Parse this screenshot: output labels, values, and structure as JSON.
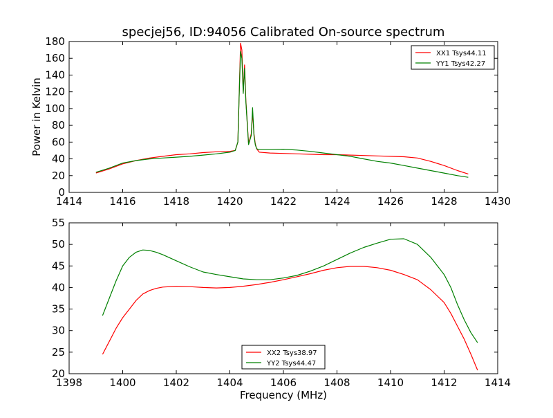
{
  "chart_data": [
    {
      "type": "line",
      "title": "specjej56, ID:94056 Calibrated On-source spectrum",
      "xlabel": "",
      "ylabel": "Power in Kelvin",
      "xlim": [
        1414,
        1430
      ],
      "ylim": [
        0,
        180
      ],
      "x_ticks": [
        1414,
        1416,
        1418,
        1420,
        1422,
        1424,
        1426,
        1428,
        1430
      ],
      "y_ticks": [
        0,
        20,
        40,
        60,
        80,
        100,
        120,
        140,
        160,
        180
      ],
      "grid": false,
      "legend_position": "top-right",
      "series": [
        {
          "name": "XX1 Tsys44.11",
          "color": "#ff0000",
          "x": [
            1415.0,
            1415.5,
            1416.0,
            1416.5,
            1417.0,
            1417.5,
            1418.0,
            1418.5,
            1419.0,
            1419.5,
            1420.0,
            1420.2,
            1420.3,
            1420.35,
            1420.4,
            1420.45,
            1420.5,
            1420.55,
            1420.6,
            1420.7,
            1420.8,
            1420.85,
            1420.9,
            1420.95,
            1421.0,
            1421.1,
            1421.5,
            1422.0,
            1422.5,
            1423.0,
            1423.5,
            1424.0,
            1424.5,
            1425.0,
            1425.5,
            1426.0,
            1426.5,
            1427.0,
            1427.5,
            1428.0,
            1428.5,
            1428.9
          ],
          "y": [
            23,
            28,
            34,
            38,
            41,
            43,
            45,
            46,
            47.5,
            48.5,
            49,
            50,
            60,
            120,
            178,
            170,
            120,
            152,
            110,
            58,
            70,
            95,
            70,
            58,
            52,
            48,
            47,
            46.5,
            46,
            45.5,
            45,
            45,
            44.5,
            44,
            43.5,
            43,
            42.5,
            41,
            37,
            32,
            26,
            22
          ]
        },
        {
          "name": "YY1 Tsys42.27",
          "color": "#008000",
          "x": [
            1415.0,
            1415.5,
            1416.0,
            1416.5,
            1417.0,
            1417.5,
            1418.0,
            1418.5,
            1419.0,
            1419.5,
            1420.0,
            1420.2,
            1420.3,
            1420.35,
            1420.4,
            1420.45,
            1420.5,
            1420.55,
            1420.6,
            1420.7,
            1420.8,
            1420.85,
            1420.9,
            1420.95,
            1421.0,
            1421.1,
            1421.5,
            1422.0,
            1422.5,
            1423.0,
            1423.5,
            1424.0,
            1424.5,
            1425.0,
            1425.5,
            1426.0,
            1426.5,
            1427.0,
            1427.5,
            1428.0,
            1428.5,
            1428.9
          ],
          "y": [
            24,
            29,
            35,
            38,
            40,
            41,
            42,
            43,
            44.5,
            46,
            48,
            50,
            60,
            118,
            168,
            160,
            118,
            148,
            108,
            57,
            68,
            101,
            68,
            57,
            52,
            51,
            51,
            51.5,
            50.5,
            49,
            47,
            45,
            43,
            40,
            37,
            35,
            32,
            29,
            26,
            23,
            20,
            18
          ]
        }
      ]
    },
    {
      "type": "line",
      "title": "",
      "xlabel": "Frequency (MHz)",
      "ylabel": "",
      "xlim": [
        1398,
        1414
      ],
      "ylim": [
        20,
        55
      ],
      "x_ticks": [
        1398,
        1400,
        1402,
        1404,
        1406,
        1408,
        1410,
        1412,
        1414
      ],
      "y_ticks": [
        20,
        25,
        30,
        35,
        40,
        45,
        50,
        55
      ],
      "grid": false,
      "legend_position": "bottom-center",
      "series": [
        {
          "name": "XX2 Tsys38.97",
          "color": "#ff0000",
          "x": [
            1399.25,
            1399.5,
            1399.75,
            1400.0,
            1400.25,
            1400.5,
            1400.75,
            1401.0,
            1401.25,
            1401.5,
            1402.0,
            1402.5,
            1403.0,
            1403.5,
            1404.0,
            1404.5,
            1405.0,
            1405.5,
            1406.0,
            1406.5,
            1407.0,
            1407.5,
            1408.0,
            1408.5,
            1409.0,
            1409.5,
            1410.0,
            1410.5,
            1411.0,
            1411.5,
            1412.0,
            1412.25,
            1412.5,
            1412.75,
            1413.0,
            1413.25
          ],
          "y": [
            24.5,
            27.5,
            30.5,
            33,
            35,
            37,
            38.5,
            39.3,
            39.8,
            40.1,
            40.3,
            40.2,
            40,
            39.9,
            40,
            40.3,
            40.7,
            41.2,
            41.8,
            42.5,
            43.2,
            44,
            44.6,
            44.9,
            44.9,
            44.6,
            44,
            43,
            41.8,
            39.5,
            36.5,
            34,
            31,
            28,
            24.5,
            20.8
          ]
        },
        {
          "name": "YY2 Tsys44.47",
          "color": "#008000",
          "x": [
            1399.25,
            1399.5,
            1399.75,
            1400.0,
            1400.25,
            1400.5,
            1400.75,
            1401.0,
            1401.25,
            1401.5,
            1402.0,
            1402.5,
            1403.0,
            1403.5,
            1404.0,
            1404.5,
            1405.0,
            1405.5,
            1406.0,
            1406.5,
            1407.0,
            1407.5,
            1408.0,
            1408.5,
            1409.0,
            1409.5,
            1410.0,
            1410.5,
            1411.0,
            1411.5,
            1412.0,
            1412.25,
            1412.5,
            1412.75,
            1413.0,
            1413.25
          ],
          "y": [
            33.5,
            37.5,
            41.5,
            45,
            47,
            48.2,
            48.7,
            48.6,
            48.2,
            47.6,
            46.2,
            44.8,
            43.6,
            43,
            42.5,
            42,
            41.8,
            41.8,
            42.2,
            42.8,
            43.8,
            45,
            46.5,
            48,
            49.3,
            50.3,
            51.2,
            51.3,
            50,
            47,
            43,
            40,
            36,
            32.5,
            29.5,
            27.2
          ]
        }
      ]
    }
  ]
}
